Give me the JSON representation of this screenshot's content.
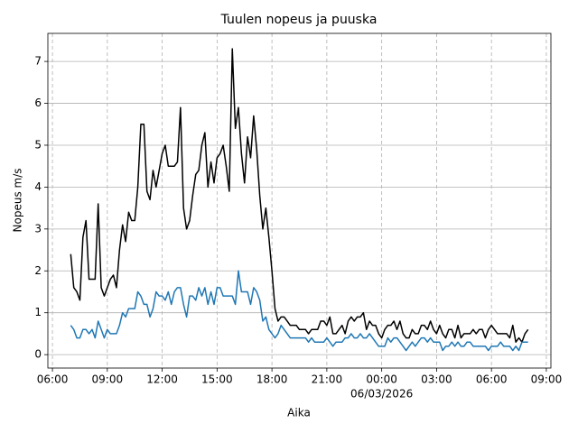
{
  "chart_data": {
    "type": "line",
    "title": "Tuulen nopeus ja puuska",
    "x_label": "Aika",
    "y_label": "Nopeus m/s",
    "x": [
      420,
      430,
      440,
      450,
      460,
      470,
      480,
      490,
      500,
      510,
      520,
      530,
      540,
      550,
      560,
      570,
      580,
      590,
      600,
      610,
      620,
      630,
      640,
      650,
      660,
      670,
      680,
      690,
      700,
      710,
      720,
      730,
      740,
      750,
      760,
      770,
      780,
      790,
      800,
      810,
      820,
      830,
      840,
      850,
      860,
      870,
      880,
      890,
      900,
      910,
      920,
      930,
      940,
      950,
      960,
      970,
      980,
      990,
      1000,
      1010,
      1020,
      1030,
      1040,
      1050,
      1060,
      1070,
      1080,
      1090,
      1100,
      1110,
      1120,
      1130,
      1140,
      1150,
      1160,
      1170,
      1180,
      1190,
      1200,
      1210,
      1220,
      1230,
      1240,
      1250,
      1260,
      1270,
      1280,
      1290,
      1300,
      1310,
      1320,
      1330,
      1340,
      1350,
      1360,
      1370,
      1380,
      1390,
      1400,
      1410,
      1420,
      1430,
      1440,
      1450,
      1460,
      1470,
      1480,
      1490,
      1500,
      1510,
      1520,
      1530,
      1540,
      1550,
      1560,
      1570,
      1580,
      1590,
      1600,
      1610,
      1620,
      1630,
      1640,
      1650,
      1660,
      1670,
      1680,
      1690,
      1700,
      1710,
      1720,
      1730,
      1740,
      1750,
      1760,
      1770,
      1780,
      1790,
      1800,
      1810,
      1820,
      1830,
      1840,
      1850,
      1860,
      1870,
      1880,
      1890,
      1900,
      1910,
      1920
    ],
    "series": [
      {
        "color": "#000000",
        "values": [
          2.4,
          1.6,
          1.5,
          1.3,
          2.8,
          3.2,
          1.8,
          1.8,
          1.8,
          3.6,
          1.6,
          1.4,
          1.6,
          1.8,
          1.9,
          1.6,
          2.5,
          3.1,
          2.7,
          3.4,
          3.2,
          3.2,
          4.0,
          5.5,
          5.5,
          3.9,
          3.7,
          4.4,
          4.0,
          4.4,
          4.8,
          5.0,
          4.5,
          4.5,
          4.5,
          4.6,
          5.9,
          3.5,
          3.0,
          3.2,
          3.8,
          4.3,
          4.4,
          5.0,
          5.3,
          4.0,
          4.6,
          4.1,
          4.7,
          4.8,
          5.0,
          4.5,
          3.9,
          7.3,
          5.4,
          5.9,
          4.8,
          4.1,
          5.2,
          4.7,
          5.7,
          4.9,
          3.8,
          3.0,
          3.5,
          2.8,
          2.0,
          1.1,
          0.8,
          0.9,
          0.9,
          0.8,
          0.7,
          0.7,
          0.7,
          0.6,
          0.6,
          0.6,
          0.5,
          0.6,
          0.6,
          0.6,
          0.8,
          0.8,
          0.7,
          0.9,
          0.5,
          0.5,
          0.6,
          0.7,
          0.5,
          0.8,
          0.9,
          0.8,
          0.9,
          0.9,
          1.0,
          0.6,
          0.8,
          0.7,
          0.7,
          0.5,
          0.4,
          0.6,
          0.7,
          0.7,
          0.8,
          0.6,
          0.8,
          0.5,
          0.4,
          0.4,
          0.6,
          0.5,
          0.5,
          0.7,
          0.7,
          0.6,
          0.8,
          0.6,
          0.5,
          0.7,
          0.5,
          0.4,
          0.6,
          0.6,
          0.4,
          0.7,
          0.4,
          0.5,
          0.5,
          0.5,
          0.6,
          0.5,
          0.6,
          0.6,
          0.4,
          0.6,
          0.7,
          0.6,
          0.5,
          0.5,
          0.5,
          0.5,
          0.4,
          0.7,
          0.3,
          0.4,
          0.3,
          0.5,
          0.6
        ]
      },
      {
        "color": "#1f77b4",
        "values": [
          0.7,
          0.6,
          0.4,
          0.4,
          0.6,
          0.6,
          0.5,
          0.6,
          0.4,
          0.8,
          0.6,
          0.4,
          0.6,
          0.5,
          0.5,
          0.5,
          0.7,
          1.0,
          0.9,
          1.1,
          1.1,
          1.1,
          1.5,
          1.4,
          1.2,
          1.2,
          0.9,
          1.1,
          1.5,
          1.4,
          1.4,
          1.3,
          1.5,
          1.2,
          1.5,
          1.6,
          1.6,
          1.2,
          0.9,
          1.4,
          1.4,
          1.3,
          1.6,
          1.4,
          1.6,
          1.2,
          1.5,
          1.2,
          1.6,
          1.6,
          1.4,
          1.4,
          1.4,
          1.4,
          1.2,
          2.0,
          1.5,
          1.5,
          1.5,
          1.2,
          1.6,
          1.5,
          1.3,
          0.8,
          0.9,
          0.6,
          0.5,
          0.4,
          0.5,
          0.7,
          0.6,
          0.5,
          0.4,
          0.4,
          0.4,
          0.4,
          0.4,
          0.4,
          0.3,
          0.4,
          0.3,
          0.3,
          0.3,
          0.3,
          0.4,
          0.3,
          0.2,
          0.3,
          0.3,
          0.3,
          0.4,
          0.4,
          0.5,
          0.4,
          0.4,
          0.5,
          0.4,
          0.4,
          0.5,
          0.4,
          0.3,
          0.2,
          0.2,
          0.2,
          0.4,
          0.3,
          0.4,
          0.4,
          0.3,
          0.2,
          0.1,
          0.2,
          0.3,
          0.2,
          0.3,
          0.4,
          0.4,
          0.3,
          0.4,
          0.3,
          0.3,
          0.3,
          0.1,
          0.2,
          0.2,
          0.3,
          0.2,
          0.3,
          0.2,
          0.2,
          0.3,
          0.3,
          0.2,
          0.2,
          0.2,
          0.2,
          0.2,
          0.1,
          0.2,
          0.2,
          0.2,
          0.3,
          0.2,
          0.2,
          0.2,
          0.1,
          0.2,
          0.1,
          0.3,
          0.3,
          0.3
        ]
      }
    ],
    "xlim": [
      345,
      1995
    ],
    "xticks": [
      {
        "value": 360,
        "label": "06:00"
      },
      {
        "value": 540,
        "label": "09:00"
      },
      {
        "value": 720,
        "label": "12:00"
      },
      {
        "value": 900,
        "label": "15:00"
      },
      {
        "value": 1080,
        "label": "18:00"
      },
      {
        "value": 1260,
        "label": "21:00"
      },
      {
        "value": 1440,
        "label": "00:00"
      },
      {
        "value": 1620,
        "label": "03:00"
      },
      {
        "value": 1800,
        "label": "06:00"
      },
      {
        "value": 1980,
        "label": "09:00"
      }
    ],
    "date_label": {
      "value": 1440,
      "label": "06/03/2026"
    },
    "ylim": [
      -0.32,
      7.67
    ],
    "yticks": [
      0,
      1,
      2,
      3,
      4,
      5,
      6,
      7
    ],
    "grid": true
  }
}
